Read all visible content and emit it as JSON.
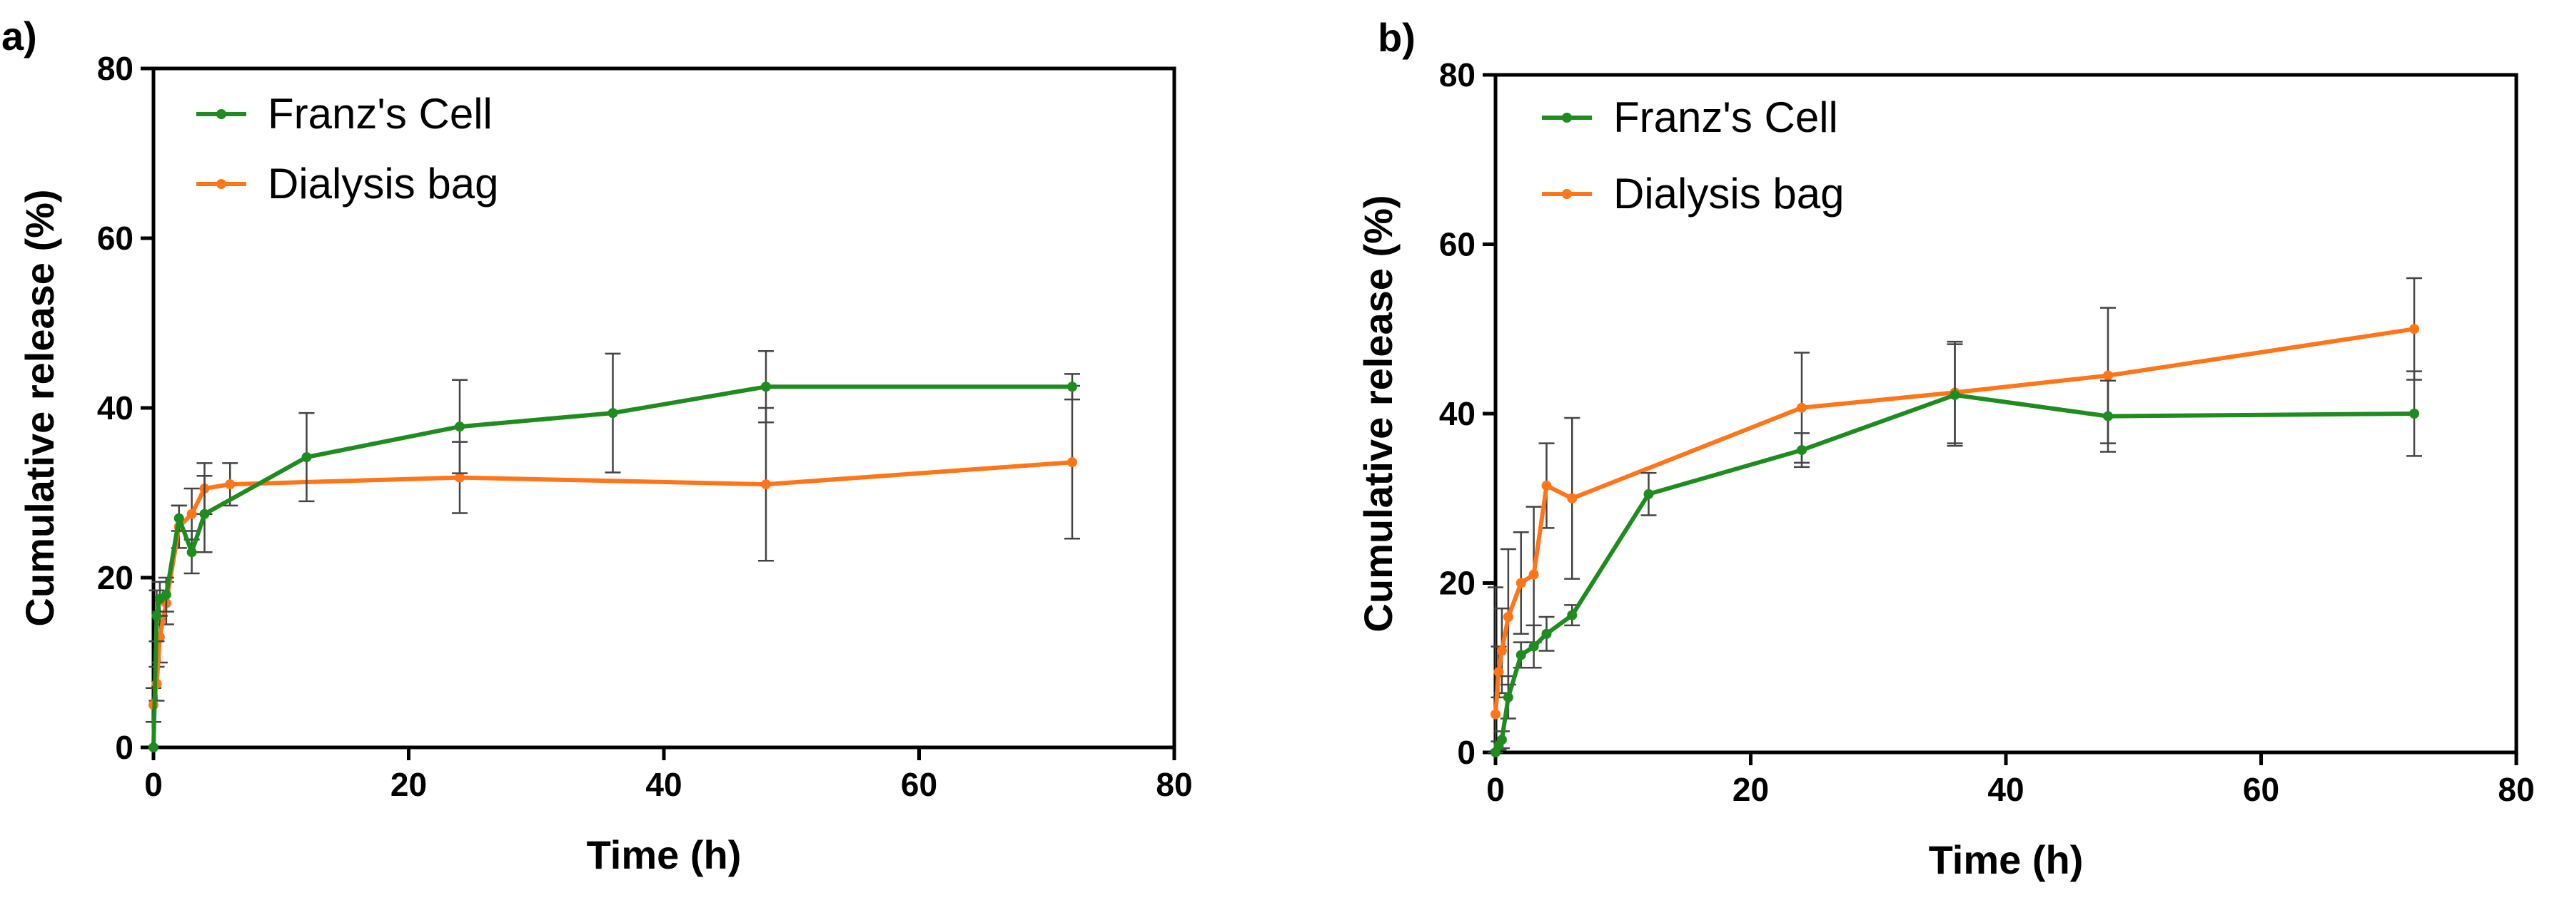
{
  "colors": {
    "franz": "#1e8c1e",
    "dialysis": "#ff7518",
    "axis": "#000000",
    "errorbar": "#444444"
  },
  "chart_data": [
    {
      "type": "line",
      "panel_label": "a)",
      "xlabel": "Time (h)",
      "ylabel": "Cumulative release (%)",
      "xlim": [
        0,
        80
      ],
      "ylim": [
        0,
        80
      ],
      "xticks": [
        0,
        20,
        40,
        60,
        80
      ],
      "yticks": [
        0,
        20,
        40,
        60,
        80
      ],
      "legend_position": "top-left",
      "series": [
        {
          "name": "Franz's Cell",
          "color": "#1e8c1e",
          "x": [
            0,
            0.25,
            0.5,
            1,
            2,
            3,
            4,
            12,
            24,
            36,
            48,
            72
          ],
          "y": [
            0,
            15.5,
            17.5,
            18,
            27,
            23,
            27.5,
            34.2,
            37.8,
            39.4,
            42.5,
            42.5
          ],
          "err": [
            0,
            3.0,
            2.0,
            2.0,
            1.5,
            2.5,
            4.5,
            5.2,
            5.5,
            7.0,
            4.2,
            1.5
          ]
        },
        {
          "name": "Dialysis bag",
          "color": "#ff7518",
          "x": [
            0,
            0.25,
            0.5,
            1,
            2,
            3,
            4,
            6,
            24,
            48,
            72
          ],
          "y": [
            5,
            7.5,
            13,
            17,
            26,
            27.5,
            30.5,
            31,
            31.8,
            31,
            33.6
          ],
          "err": [
            2,
            2.0,
            3.0,
            2.5,
            2.5,
            3.0,
            3.0,
            2.5,
            4.2,
            9.0,
            9.0
          ]
        }
      ]
    },
    {
      "type": "line",
      "panel_label": "b)",
      "xlabel": "Time (h)",
      "ylabel": "Cumulative release (%)",
      "xlim": [
        0,
        80
      ],
      "ylim": [
        0,
        80
      ],
      "xticks": [
        0,
        20,
        40,
        60,
        80
      ],
      "yticks": [
        0,
        20,
        40,
        60,
        80
      ],
      "legend_position": "top-left",
      "series": [
        {
          "name": "Franz's Cell",
          "color": "#1e8c1e",
          "x": [
            0,
            0.25,
            0.5,
            1,
            2,
            3,
            4,
            6,
            12,
            24,
            36,
            48,
            72
          ],
          "y": [
            0,
            0.8,
            1.5,
            6.5,
            11.5,
            12.5,
            14,
            16.2,
            30.5,
            35.7,
            42.2,
            39.7,
            40
          ],
          "err": [
            0,
            0.5,
            1.0,
            2.5,
            1.5,
            2.5,
            2.0,
            1.2,
            2.5,
            2.0,
            6.0,
            4.2,
            5.0
          ]
        },
        {
          "name": "Dialysis bag",
          "color": "#ff7518",
          "x": [
            0,
            0.25,
            0.5,
            1,
            2,
            3,
            4,
            6,
            24,
            36,
            48,
            72
          ],
          "y": [
            4.5,
            9.5,
            12,
            16,
            20,
            21,
            31.5,
            30,
            40.7,
            42.5,
            44.5,
            50
          ],
          "err": [
            15,
            3.0,
            5.0,
            8.0,
            6.0,
            8.0,
            5.0,
            9.5,
            6.5,
            6.0,
            8.0,
            6.0
          ]
        }
      ]
    }
  ]
}
